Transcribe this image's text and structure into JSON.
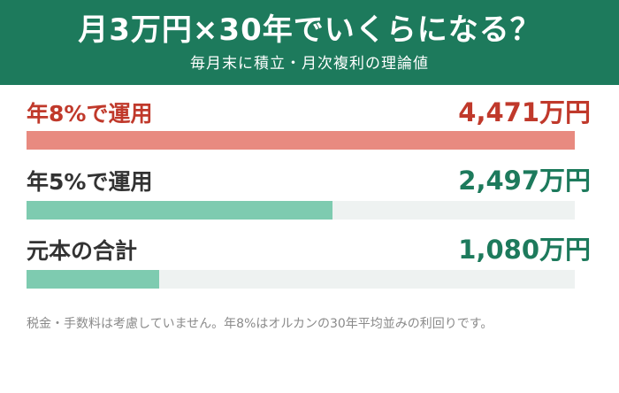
{
  "header": {
    "title": "月3万円×30年でいくらになる？",
    "subtitle": "毎月末に積立・月次複利の理論値"
  },
  "chart_data": {
    "type": "bar",
    "unit": "万円",
    "max": 4471,
    "rows": [
      {
        "label": "年8%で運用",
        "value": 4471,
        "display": "4,471万円",
        "color": "#e88a80",
        "text_color": "#c0392b"
      },
      {
        "label": "年5%で運用",
        "value": 2497,
        "display": "2,497万円",
        "color": "#7ecbb0",
        "text_color": "#1d7a5c"
      },
      {
        "label": "元本の合計",
        "value": 1080,
        "display": "1,080万円",
        "color": "#7ecbb0",
        "text_color": "#1d7a5c"
      }
    ]
  },
  "note": "税金・手数料は考慮していません。年8%はオルカンの30年平均並みの利回りです。"
}
